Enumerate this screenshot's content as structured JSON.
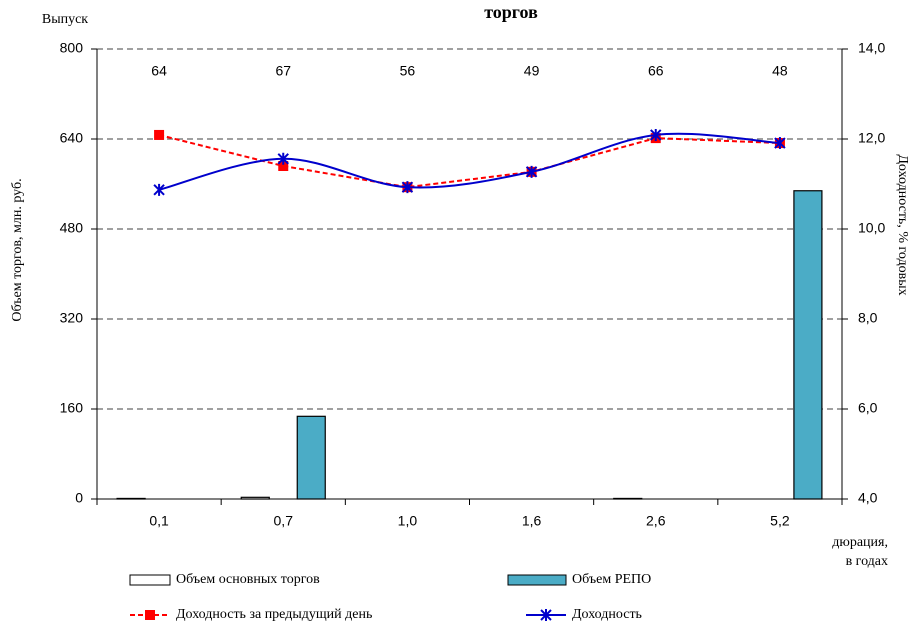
{
  "chart_data": {
    "type": "bar-line",
    "title": "торгов",
    "top_labels_title": "Выпуск",
    "top_labels": [
      64,
      67,
      56,
      49,
      66,
      48
    ],
    "categories": [
      "0,1",
      "0,7",
      "1,0",
      "1,6",
      "2,6",
      "5,2"
    ],
    "x_label": [
      "дюрация,",
      "в годах"
    ],
    "y_label": "Объем торгов, млн. руб.",
    "y2_label": "Доходность, % годовых",
    "ylim": [
      0,
      800
    ],
    "yticks": [
      0,
      160,
      320,
      480,
      640,
      800
    ],
    "y2lim": [
      4,
      14
    ],
    "y2ticks": [
      {
        "value": 4,
        "label": "4,0"
      },
      {
        "value": 6,
        "label": "6,0"
      },
      {
        "value": 8,
        "label": "8,0"
      },
      {
        "value": 10,
        "label": "10,0"
      },
      {
        "value": 12,
        "label": "12,0"
      },
      {
        "value": 14,
        "label": "14,0"
      }
    ],
    "grid": true,
    "series": [
      {
        "name": "Объем основных торгов",
        "type": "bar",
        "color": "#ffffff",
        "values": [
          1,
          3,
          0,
          0,
          1,
          0
        ]
      },
      {
        "name": "Объем РЕПО",
        "type": "bar",
        "color": "#4bacc6",
        "values": [
          0,
          147,
          0,
          0,
          0,
          548
        ]
      },
      {
        "name": "Доходность за предыдущий день",
        "type": "line",
        "axis": "y2",
        "color": "#ff0000",
        "values": [
          12.09,
          11.4,
          10.93,
          11.27,
          12.02,
          11.91
        ]
      },
      {
        "name": "Доходность",
        "type": "line",
        "axis": "y2",
        "color": "#0000cc",
        "values": [
          10.87,
          11.56,
          10.93,
          11.27,
          12.09,
          11.91
        ]
      }
    ]
  }
}
